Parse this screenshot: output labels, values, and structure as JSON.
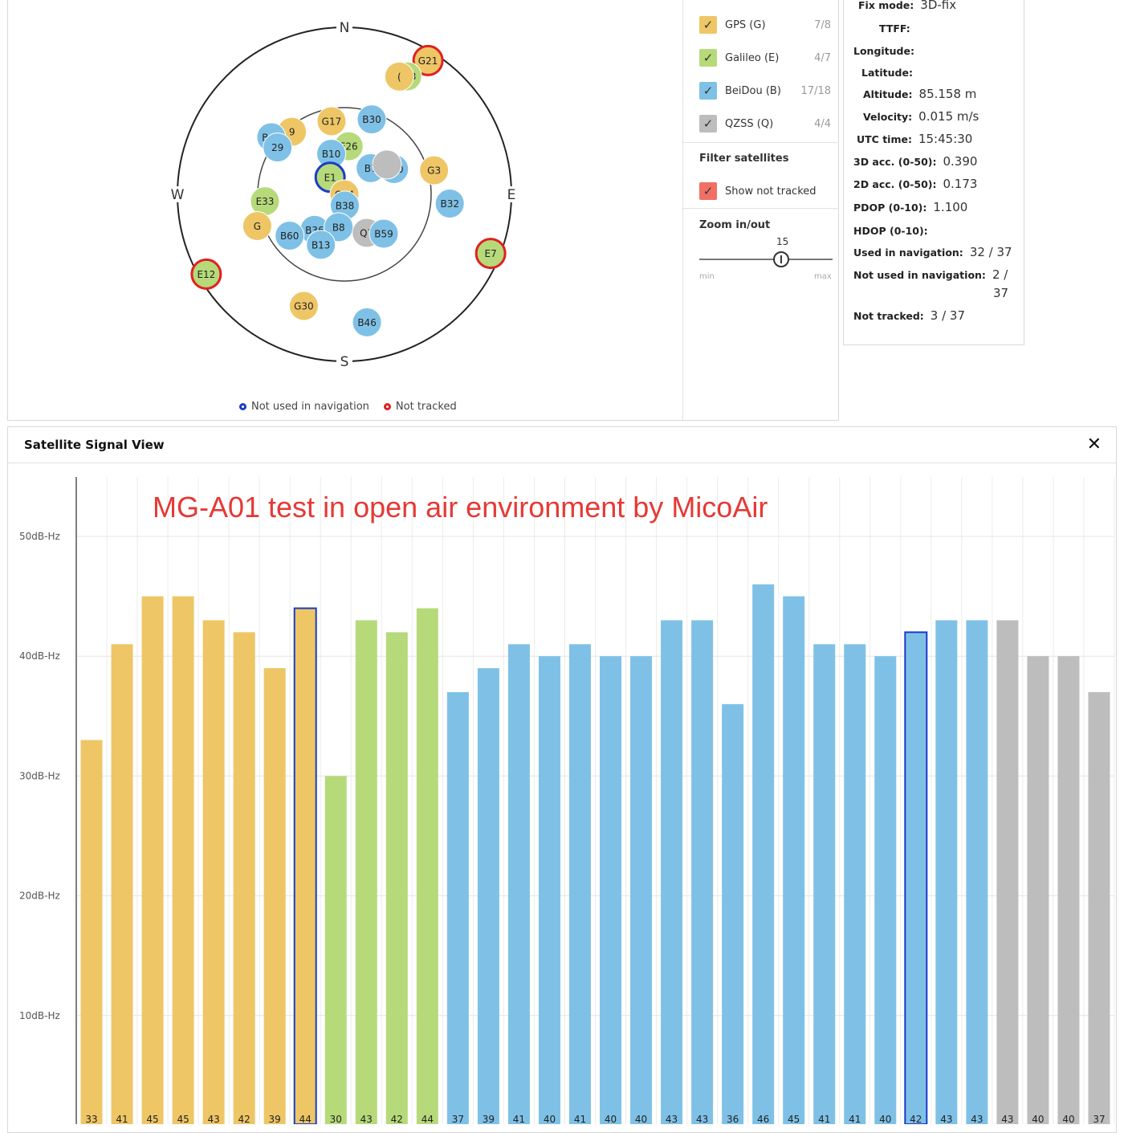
{
  "skyview": {
    "compass": {
      "n": "N",
      "s": "S",
      "e": "E",
      "w": "W"
    },
    "legend": {
      "not_used": "Not used in navigation",
      "not_tracked": "Not tracked"
    },
    "satellites": [
      {
        "id": "G21",
        "c": "G",
        "az": 32,
        "el": 5,
        "status": "not_tracked"
      },
      {
        "id": "E13",
        "c": "E",
        "az": 28,
        "el": 18
      },
      {
        "id": "G?",
        "c": "G",
        "az": 25,
        "el": 20,
        "label": "("
      },
      {
        "id": "G17",
        "c": "G",
        "az": 350,
        "el": 50
      },
      {
        "id": "B30",
        "c": "B",
        "az": 20,
        "el": 47
      },
      {
        "id": "E26",
        "c": "E",
        "az": 5,
        "el": 64,
        "label": "E26"
      },
      {
        "id": "B10",
        "c": "B",
        "az": 342,
        "el": 67
      },
      {
        "id": "B7",
        "c": "B",
        "az": 45,
        "el": 70
      },
      {
        "id": "B40",
        "c": "B",
        "az": 63,
        "el": 60
      },
      {
        "id": "Q?",
        "c": "Q",
        "az": 55,
        "el": 62,
        "label": ""
      },
      {
        "id": "E1",
        "c": "E",
        "az": 320,
        "el": 78,
        "status": "not_used"
      },
      {
        "id": "G9",
        "c": "G",
        "az": 320,
        "el": 46,
        "label": "9"
      },
      {
        "id": "B45",
        "c": "B",
        "az": 308,
        "el": 40
      },
      {
        "id": "B29",
        "c": "B",
        "az": 305,
        "el": 46,
        "label": "29"
      },
      {
        "id": "G3",
        "c": "G",
        "az": 75,
        "el": 40
      },
      {
        "id": "B32",
        "c": "B",
        "az": 95,
        "el": 33
      },
      {
        "id": "E33",
        "c": "E",
        "az": 265,
        "el": 47
      },
      {
        "id": "G14",
        "c": "G",
        "az": 140,
        "el": 90
      },
      {
        "id": "B38",
        "c": "B",
        "az": 178,
        "el": 84
      },
      {
        "id": "G?2",
        "c": "G",
        "az": 250,
        "el": 40,
        "label": "G"
      },
      {
        "id": "B36",
        "c": "B",
        "az": 220,
        "el": 65
      },
      {
        "id": "B60",
        "c": "B",
        "az": 233,
        "el": 53
      },
      {
        "id": "B8",
        "c": "B",
        "az": 190,
        "el": 72
      },
      {
        "id": "B13",
        "c": "B",
        "az": 205,
        "el": 60
      },
      {
        "id": "Q7",
        "c": "Q",
        "az": 150,
        "el": 66
      },
      {
        "id": "B59",
        "c": "B",
        "az": 135,
        "el": 60
      },
      {
        "id": "E7",
        "c": "E",
        "az": 112,
        "el": 5,
        "status": "not_tracked"
      },
      {
        "id": "E12",
        "c": "E",
        "az": 240,
        "el": 4,
        "status": "not_tracked"
      },
      {
        "id": "G30",
        "c": "G",
        "az": 200,
        "el": 26
      },
      {
        "id": "B46",
        "c": "B",
        "az": 170,
        "el": 20
      }
    ]
  },
  "constellations": [
    {
      "label": "GPS (G)",
      "count": "7/8",
      "color": "#EEC666",
      "checked": true
    },
    {
      "label": "Galileo (E)",
      "count": "4/7",
      "color": "#B6DA7A",
      "checked": true
    },
    {
      "label": "BeiDou (B)",
      "count": "17/18",
      "color": "#7FC1E6",
      "checked": true
    },
    {
      "label": "QZSS (Q)",
      "count": "4/4",
      "color": "#BDBDBD",
      "checked": true
    }
  ],
  "filter": {
    "title": "Filter satellites",
    "show_not_tracked": "Show not tracked",
    "checkbox_color": "#F07065"
  },
  "zoom": {
    "title": "Zoom in/out",
    "value": "15",
    "min": "min",
    "max": "max",
    "level": 0.62
  },
  "info": [
    {
      "k": "Fix mode:",
      "v": "3D-fix"
    },
    {
      "k": "TTFF:",
      "v": ""
    },
    {
      "k": "Longitude:",
      "v": ""
    },
    {
      "k": "Latitude:",
      "v": ""
    },
    {
      "k": "Altitude:",
      "v": "85.158 m"
    },
    {
      "k": "Velocity:",
      "v": "0.015 m/s"
    },
    {
      "k": "UTC time:",
      "v": "15:45:30"
    },
    {
      "k": "3D acc. (0-50):",
      "v": "0.390"
    },
    {
      "k": "2D acc. (0-50):",
      "v": "0.173"
    },
    {
      "k": "PDOP (0-10):",
      "v": "1.100"
    },
    {
      "k": "HDOP (0-10):",
      "v": ""
    },
    {
      "k": "Used in navigation:",
      "v": "32 / 37"
    },
    {
      "k": "Not used in navigation:",
      "v": "2 /",
      "v2": "37"
    },
    {
      "k": "Not tracked:",
      "v": "3 / 37"
    }
  ],
  "signal": {
    "title": "Satellite Signal View",
    "close_icon": "close-icon",
    "watermark": "MG-A01 test in open air environment by MicoAir",
    "watermark_color": "#E53935",
    "colors": {
      "G": "#EEC666",
      "E": "#B6DA7A",
      "B": "#7FC1E6",
      "Q": "#BDBDBD",
      "outline": "#1A3CC8"
    },
    "y_ticks": [
      "50dB-Hz",
      "40dB-Hz",
      "30dB-Hz",
      "20dB-Hz",
      "10dB-Hz"
    ]
  },
  "chart_data": {
    "type": "bar",
    "ylabel": "",
    "ylim": [
      0,
      55
    ],
    "y_ticks": [
      10,
      20,
      30,
      40,
      50
    ],
    "values": [
      33,
      41,
      45,
      45,
      43,
      42,
      39,
      44,
      30,
      43,
      42,
      44,
      37,
      39,
      41,
      40,
      41,
      40,
      40,
      43,
      43,
      36,
      46,
      45,
      41,
      41,
      40,
      42,
      43,
      43,
      43,
      40,
      40,
      37
    ],
    "constellation": [
      "G",
      "G",
      "G",
      "G",
      "G",
      "G",
      "G",
      "G",
      "E",
      "E",
      "E",
      "E",
      "B",
      "B",
      "B",
      "B",
      "B",
      "B",
      "B",
      "B",
      "B",
      "B",
      "B",
      "B",
      "B",
      "B",
      "B",
      "B",
      "B",
      "B",
      "Q",
      "Q",
      "Q",
      "Q"
    ],
    "not_used_in_navigation": [
      7,
      27
    ]
  }
}
